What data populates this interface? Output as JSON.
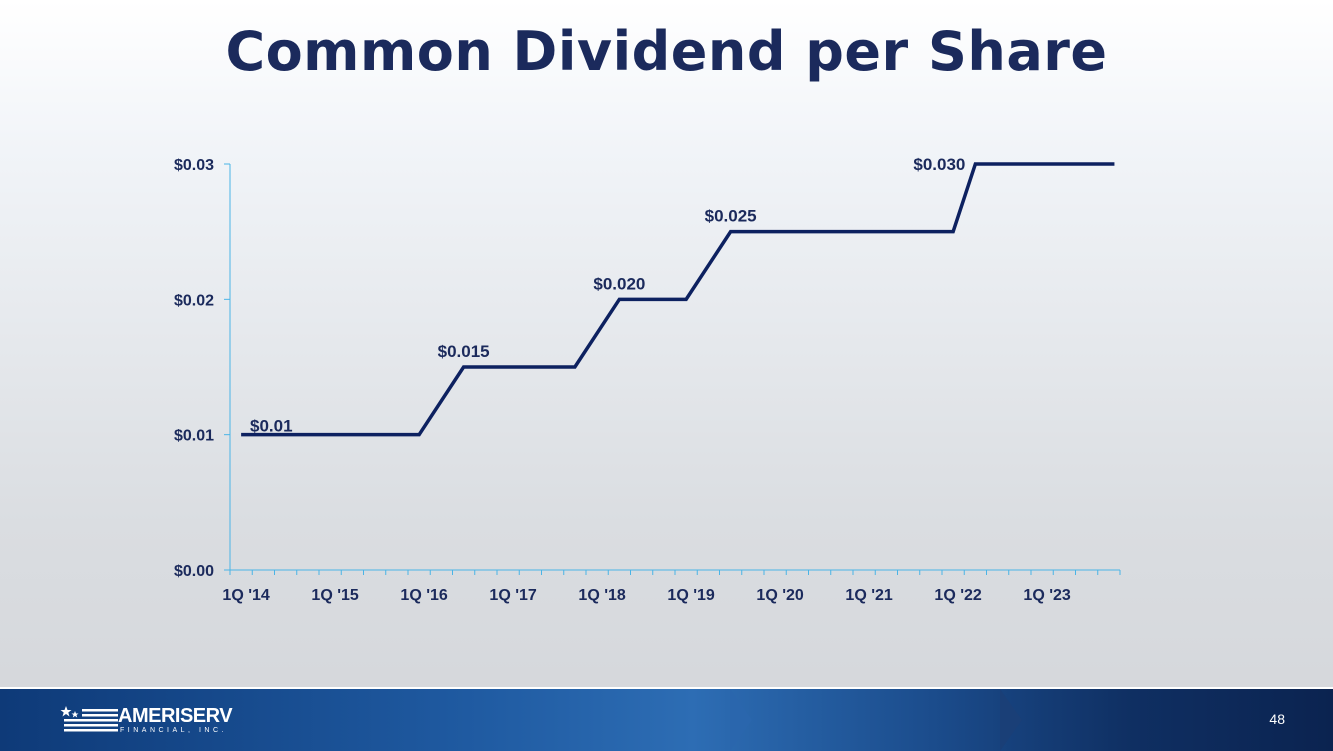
{
  "title": "Common Dividend per Share",
  "footer": {
    "logo_text": "AMERISERV",
    "logo_subtext": "FINANCIAL, INC.",
    "page_number": "48"
  },
  "colors": {
    "title": "#1b2a5c",
    "line": "#0d2160",
    "axis": "#4ab4e6",
    "footer": "#1f5aa1"
  },
  "chart_data": {
    "type": "line",
    "step_line": true,
    "title": "",
    "xlabel": "",
    "ylabel": "",
    "ylim": [
      0,
      0.03
    ],
    "yticks": [
      "$0.00",
      "$0.01",
      "$0.02",
      "$0.03"
    ],
    "xticks": [
      "1Q '14",
      "1Q '15",
      "1Q '16",
      "1Q '17",
      "1Q '18",
      "1Q '19",
      "1Q '20",
      "1Q '21",
      "1Q '22",
      "1Q '23"
    ],
    "grid": false,
    "legend": "none",
    "series": [
      {
        "points": [
          {
            "x": "1Q '14",
            "y": 0.01
          },
          {
            "x": "1Q '16",
            "y": 0.01
          },
          {
            "x": "3Q '16",
            "y": 0.015
          },
          {
            "x": "4Q '17",
            "y": 0.015
          },
          {
            "x": "2Q '18",
            "y": 0.02
          },
          {
            "x": "1Q '19",
            "y": 0.02
          },
          {
            "x": "3Q '19",
            "y": 0.025
          },
          {
            "x": "1Q '22",
            "y": 0.025
          },
          {
            "x": "2Q '22",
            "y": 0.03
          },
          {
            "x": "1Q '23",
            "y": 0.03
          }
        ]
      }
    ],
    "annotations": [
      {
        "text": "$0.01",
        "x": "1Q '14",
        "y": 0.01
      },
      {
        "text": "$0.015",
        "x": "3Q '16",
        "y": 0.015
      },
      {
        "text": "$0.020",
        "x": "2Q '18",
        "y": 0.02
      },
      {
        "text": "$0.025",
        "x": "3Q '19",
        "y": 0.025
      },
      {
        "text": "$0.030",
        "x": "2Q '22",
        "y": 0.03
      }
    ]
  }
}
